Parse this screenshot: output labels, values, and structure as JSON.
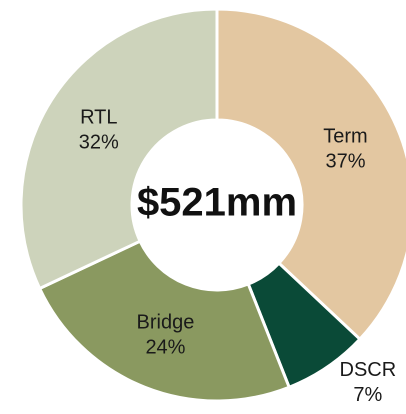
{
  "chart_data": {
    "type": "donut",
    "center_label": "$521mm",
    "categories": [
      "Term",
      "DSCR",
      "Bridge",
      "RTL"
    ],
    "values": [
      37,
      7,
      24,
      32
    ],
    "value_labels": [
      "37%",
      "7%",
      "24%",
      "32%"
    ],
    "colors": [
      "#e3c7a1",
      "#0a4a37",
      "#8a9960",
      "#cdd3bb"
    ]
  }
}
